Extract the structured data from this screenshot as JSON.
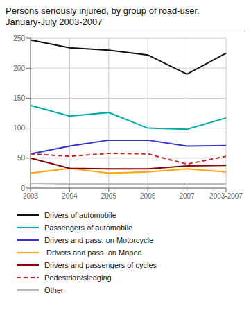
{
  "chart_data": {
    "type": "line",
    "title": "Persons seriously injured, by group of road-user.",
    "subtitle": "January-July 2003-2007",
    "categories": [
      "2003",
      "2004",
      "2005",
      "2006",
      "2007",
      "2003-2007"
    ],
    "series": [
      {
        "name": "Drivers of automobile",
        "color": "#111111",
        "line_style": "solid",
        "values": [
          247,
          234,
          230,
          222,
          190,
          225
        ]
      },
      {
        "name": "Passengers of automobile",
        "color": "#00AAAA",
        "line_style": "solid",
        "values": [
          138,
          120,
          126,
          100,
          98,
          117
        ]
      },
      {
        "name": "Drivers and pass. on Motorcycle",
        "color": "#3333CC",
        "line_style": "solid",
        "values": [
          57,
          70,
          80,
          80,
          70,
          71
        ]
      },
      {
        "name": " Drivers and pass. on Moped",
        "color": "#FFA500",
        "line_style": "solid",
        "values": [
          25,
          33,
          25,
          27,
          32,
          27
        ]
      },
      {
        "name": "Drivers and passengers of cycles",
        "color": "#8B0000",
        "line_style": "solid",
        "values": [
          50,
          33,
          32,
          32,
          37,
          38
        ]
      },
      {
        "name": "Pedestrian/sledging",
        "color": "#CC2222",
        "line_style": "dashed",
        "values": [
          57,
          53,
          58,
          57,
          40,
          53
        ]
      },
      {
        "name": "Other",
        "color": "#BBBBBB",
        "line_style": "solid",
        "values": [
          8,
          7,
          7,
          7,
          7,
          7
        ]
      }
    ],
    "ylim": [
      0,
      250
    ],
    "yticks": [
      0,
      50,
      100,
      150,
      200,
      250
    ],
    "grid": true,
    "legend": "bottom"
  }
}
